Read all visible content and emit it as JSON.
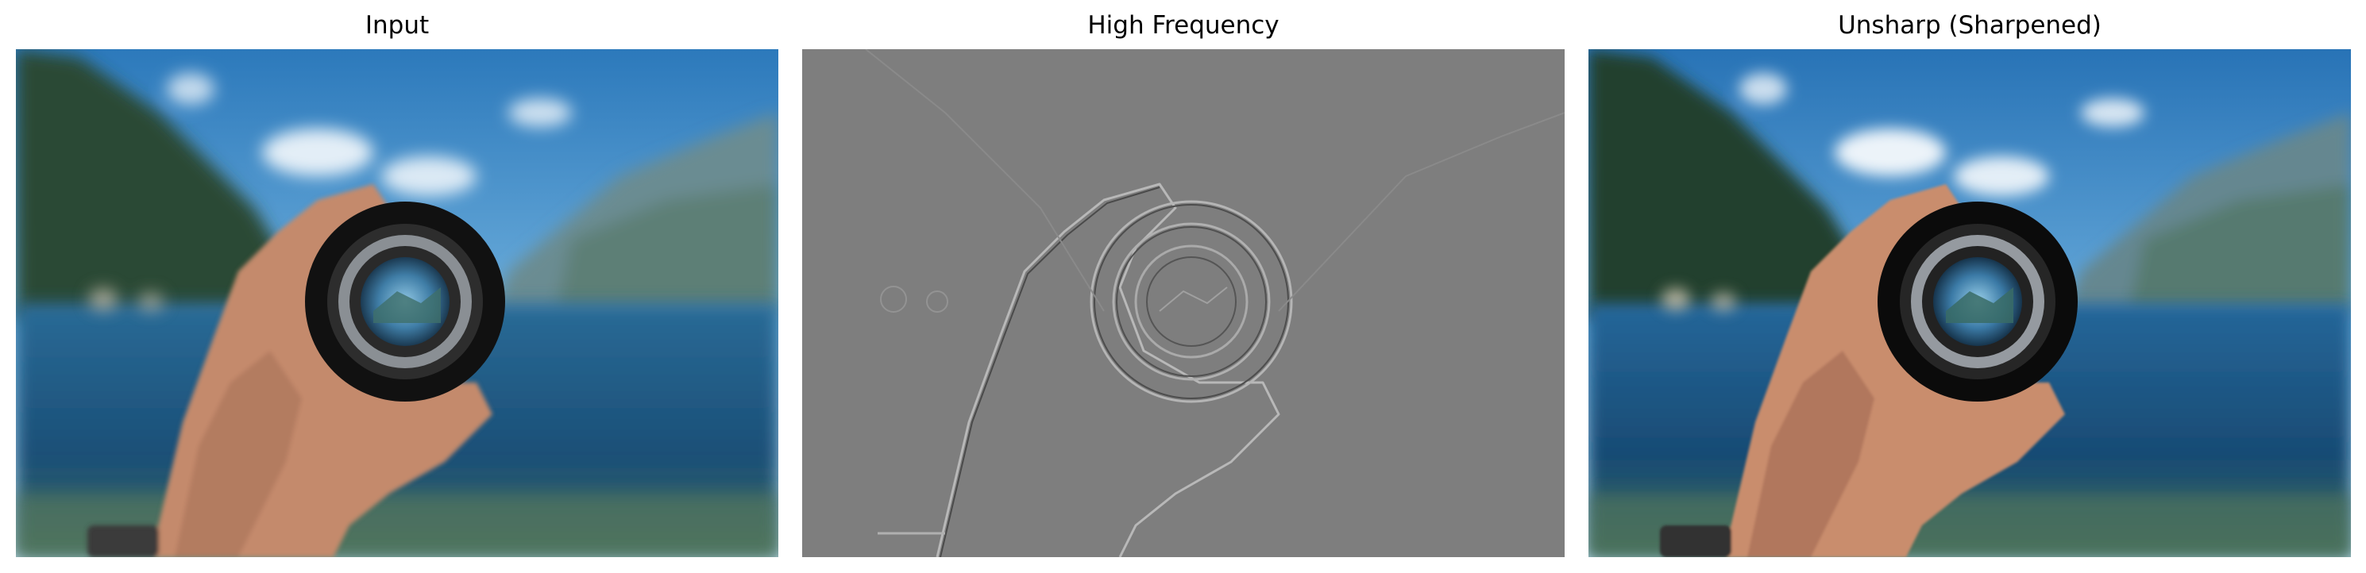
{
  "panels": [
    {
      "title": "Input"
    },
    {
      "title": "High Frequency"
    },
    {
      "title": "Unsharp (Sharpened)"
    }
  ],
  "colors": {
    "sky_top": "#2f7fc0",
    "sky_bottom": "#a9d0ea",
    "lake": "#1f5a86",
    "mountain_dark": "#274534",
    "skin": "#c48a6c",
    "lens_body": "#151515",
    "high_frequency_gray": "#7e7e7e"
  }
}
